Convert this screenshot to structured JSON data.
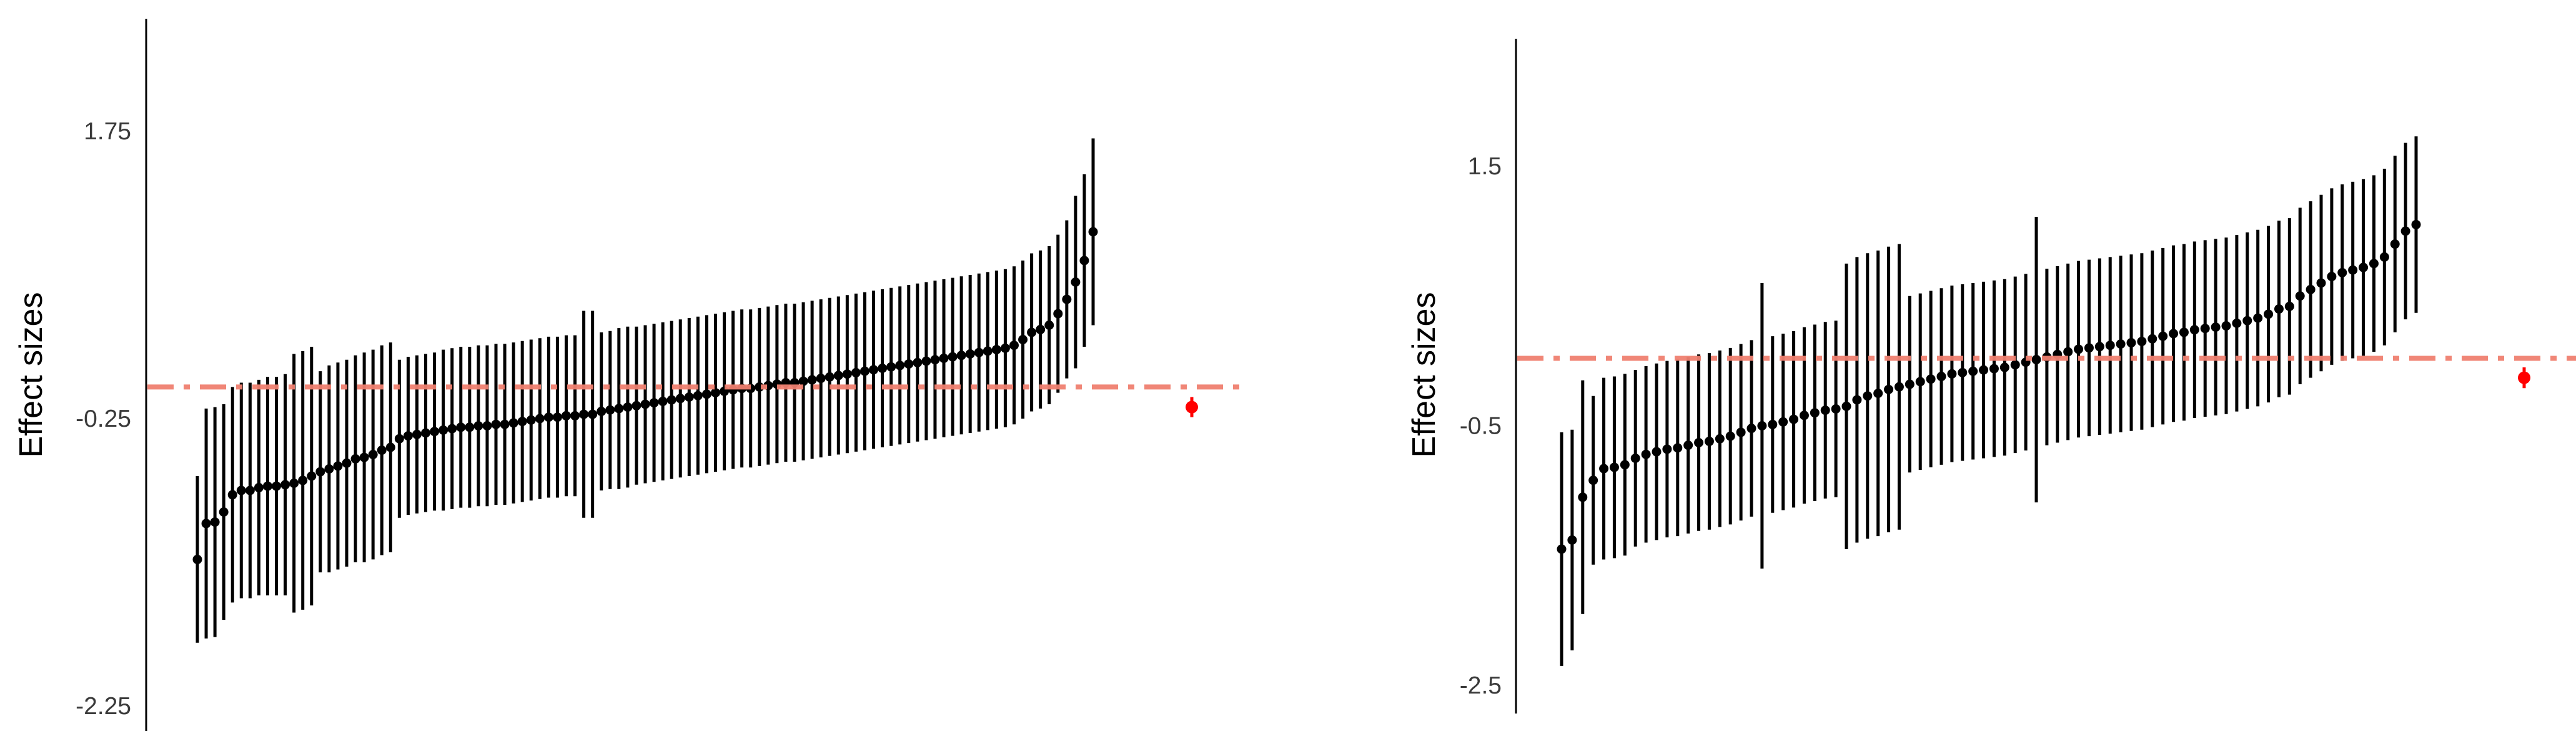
{
  "chart_data": [
    {
      "type": "scatter",
      "title": "",
      "xlabel": "",
      "ylabel": "Effect sizes",
      "ylim": [
        -2.27,
        2.4
      ],
      "yticks": [
        -2.25,
        -0.25,
        1.75
      ],
      "ytick_labels": [
        "-2.25",
        "-0.25",
        "1.75"
      ],
      "grid": false,
      "legend": "none",
      "reference_line": {
        "y": -0.03,
        "style": "dashdot",
        "color": "#f08070"
      },
      "estimates": [
        -1.23,
        -0.98,
        -0.97,
        -0.9,
        -0.78,
        -0.75,
        -0.75,
        -0.73,
        -0.72,
        -0.72,
        -0.71,
        -0.7,
        -0.68,
        -0.65,
        -0.62,
        -0.6,
        -0.58,
        -0.56,
        -0.53,
        -0.52,
        -0.5,
        -0.47,
        -0.45,
        -0.39,
        -0.37,
        -0.36,
        -0.35,
        -0.34,
        -0.33,
        -0.32,
        -0.31,
        -0.31,
        -0.3,
        -0.3,
        -0.29,
        -0.29,
        -0.28,
        -0.27,
        -0.26,
        -0.25,
        -0.24,
        -0.24,
        -0.23,
        -0.23,
        -0.22,
        -0.22,
        -0.2,
        -0.19,
        -0.18,
        -0.17,
        -0.16,
        -0.15,
        -0.14,
        -0.13,
        -0.12,
        -0.11,
        -0.1,
        -0.09,
        -0.08,
        -0.07,
        -0.06,
        -0.05,
        -0.04,
        -0.04,
        -0.03,
        -0.02,
        -0.01,
        0.0,
        0.0,
        0.01,
        0.02,
        0.03,
        0.04,
        0.05,
        0.06,
        0.07,
        0.08,
        0.09,
        0.1,
        0.11,
        0.12,
        0.13,
        0.14,
        0.15,
        0.16,
        0.17,
        0.18,
        0.19,
        0.2,
        0.21,
        0.22,
        0.23,
        0.24,
        0.26,
        0.3,
        0.35,
        0.37,
        0.4,
        0.48,
        0.58,
        0.7,
        0.85,
        1.05
      ],
      "ci_half_widths": [
        0.58,
        0.8,
        0.8,
        0.75,
        0.75,
        0.75,
        0.75,
        0.75,
        0.76,
        0.76,
        0.77,
        0.9,
        0.9,
        0.9,
        0.7,
        0.72,
        0.72,
        0.72,
        0.72,
        0.73,
        0.73,
        0.73,
        0.73,
        0.55,
        0.55,
        0.55,
        0.55,
        0.55,
        0.56,
        0.56,
        0.56,
        0.56,
        0.56,
        0.56,
        0.56,
        0.56,
        0.56,
        0.56,
        0.56,
        0.56,
        0.56,
        0.56,
        0.56,
        0.56,
        0.72,
        0.72,
        0.55,
        0.55,
        0.56,
        0.56,
        0.55,
        0.55,
        0.55,
        0.55,
        0.55,
        0.55,
        0.55,
        0.55,
        0.55,
        0.55,
        0.55,
        0.55,
        0.55,
        0.55,
        0.55,
        0.55,
        0.55,
        0.55,
        0.55,
        0.55,
        0.55,
        0.55,
        0.55,
        0.55,
        0.55,
        0.55,
        0.55,
        0.55,
        0.55,
        0.55,
        0.55,
        0.55,
        0.55,
        0.55,
        0.55,
        0.55,
        0.55,
        0.55,
        0.55,
        0.55,
        0.55,
        0.55,
        0.55,
        0.55,
        0.55,
        0.55,
        0.55,
        0.55,
        0.55,
        0.55,
        0.6,
        0.6,
        0.65
      ],
      "pooled": {
        "estimate": -0.17,
        "ci_half_width": 0.07,
        "color": "#ff0000"
      }
    },
    {
      "type": "scatter",
      "title": "",
      "xlabel": "",
      "ylabel": "Effect sizes",
      "ylim": [
        -2.7,
        2.5
      ],
      "yticks": [
        -2.5,
        -0.5,
        1.5
      ],
      "ytick_labels": [
        "-2.5",
        "-0.5",
        "1.5"
      ],
      "grid": false,
      "legend": "none",
      "reference_line": {
        "y": 0.02,
        "style": "dashdot",
        "color": "#f08070"
      },
      "estimates": [
        -1.45,
        -1.38,
        -1.05,
        -0.92,
        -0.83,
        -0.82,
        -0.8,
        -0.75,
        -0.72,
        -0.7,
        -0.68,
        -0.67,
        -0.65,
        -0.63,
        -0.62,
        -0.6,
        -0.58,
        -0.55,
        -0.52,
        -0.5,
        -0.49,
        -0.47,
        -0.45,
        -0.42,
        -0.4,
        -0.38,
        -0.37,
        -0.35,
        -0.3,
        -0.27,
        -0.25,
        -0.22,
        -0.2,
        -0.18,
        -0.16,
        -0.14,
        -0.12,
        -0.1,
        -0.09,
        -0.08,
        -0.07,
        -0.06,
        -0.05,
        -0.03,
        -0.01,
        0.01,
        0.03,
        0.05,
        0.07,
        0.09,
        0.1,
        0.11,
        0.12,
        0.13,
        0.14,
        0.15,
        0.17,
        0.19,
        0.21,
        0.22,
        0.24,
        0.25,
        0.26,
        0.27,
        0.29,
        0.31,
        0.33,
        0.36,
        0.4,
        0.42,
        0.5,
        0.55,
        0.6,
        0.65,
        0.68,
        0.7,
        0.72,
        0.75,
        0.8,
        0.9,
        1.0,
        1.05
      ],
      "ci_half_widths": [
        0.9,
        0.85,
        0.9,
        0.65,
        0.7,
        0.7,
        0.7,
        0.68,
        0.68,
        0.68,
        0.68,
        0.68,
        0.68,
        0.68,
        0.68,
        0.68,
        0.68,
        0.68,
        0.68,
        1.1,
        0.68,
        0.68,
        0.68,
        0.68,
        0.68,
        0.68,
        0.68,
        1.1,
        1.1,
        1.1,
        1.1,
        1.1,
        1.1,
        0.68,
        0.68,
        0.68,
        0.68,
        0.68,
        0.68,
        0.68,
        0.68,
        0.68,
        0.68,
        0.68,
        0.68,
        1.1,
        0.68,
        0.68,
        0.68,
        0.68,
        0.68,
        0.68,
        0.68,
        0.68,
        0.68,
        0.68,
        0.68,
        0.68,
        0.68,
        0.68,
        0.68,
        0.68,
        0.68,
        0.68,
        0.68,
        0.68,
        0.68,
        0.68,
        0.68,
        0.68,
        0.68,
        0.68,
        0.68,
        0.68,
        0.68,
        0.68,
        0.68,
        0.68,
        0.68,
        0.68,
        0.68,
        0.68
      ],
      "pooled": {
        "estimate": -0.13,
        "ci_half_width": 0.08,
        "color": "#ff0000"
      }
    }
  ]
}
